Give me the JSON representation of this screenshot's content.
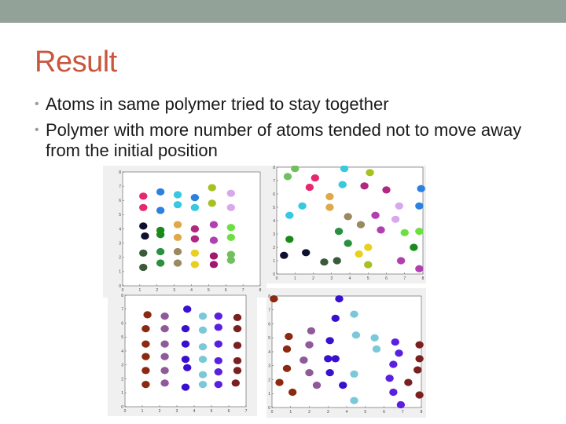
{
  "slide": {
    "title": "Result",
    "accent_color": "#c8573d",
    "bar_color": "#93a299",
    "bullets": [
      "Atoms in same polymer tried to stay together",
      "Polymer with more number of atoms tended not to move away from the initial position"
    ]
  },
  "chart_data": [
    {
      "type": "scatter",
      "xlim": [
        0,
        8
      ],
      "ylim": [
        0,
        8
      ],
      "xticks": [
        "0",
        "1",
        "2",
        "3",
        "4",
        "5",
        "6",
        "7",
        "8"
      ],
      "yticks": [
        "0",
        "1",
        "2",
        "3",
        "4",
        "5",
        "6",
        "7",
        "8"
      ],
      "points": [
        {
          "x": 1.2,
          "y": 6.3,
          "color": "#e6286f"
        },
        {
          "x": 1.2,
          "y": 5.5,
          "color": "#e6286f"
        },
        {
          "x": 2.2,
          "y": 6.6,
          "color": "#2b80e0"
        },
        {
          "x": 2.2,
          "y": 5.3,
          "color": "#2b80e0"
        },
        {
          "x": 3.2,
          "y": 6.4,
          "color": "#38c8e0"
        },
        {
          "x": 3.2,
          "y": 5.7,
          "color": "#38c8e0"
        },
        {
          "x": 4.2,
          "y": 6.2,
          "color": "#2b80e0"
        },
        {
          "x": 4.2,
          "y": 5.5,
          "color": "#38c8e0"
        },
        {
          "x": 5.2,
          "y": 6.9,
          "color": "#a8c020"
        },
        {
          "x": 5.2,
          "y": 5.8,
          "color": "#a8c020"
        },
        {
          "x": 6.3,
          "y": 6.5,
          "color": "#d8a8ec"
        },
        {
          "x": 6.3,
          "y": 5.5,
          "color": "#d8a8ec"
        },
        {
          "x": 1.2,
          "y": 4.2,
          "color": "#101030"
        },
        {
          "x": 1.3,
          "y": 3.5,
          "color": "#101030"
        },
        {
          "x": 2.2,
          "y": 3.9,
          "color": "#1a8a1a"
        },
        {
          "x": 2.2,
          "y": 3.6,
          "color": "#1a8a1a"
        },
        {
          "x": 3.2,
          "y": 4.3,
          "color": "#e0a848"
        },
        {
          "x": 3.2,
          "y": 3.4,
          "color": "#e0a848"
        },
        {
          "x": 4.2,
          "y": 4.0,
          "color": "#b02880"
        },
        {
          "x": 4.2,
          "y": 3.3,
          "color": "#b02880"
        },
        {
          "x": 5.3,
          "y": 4.3,
          "color": "#b040b0"
        },
        {
          "x": 5.3,
          "y": 3.2,
          "color": "#b040b0"
        },
        {
          "x": 6.3,
          "y": 4.1,
          "color": "#6ce040"
        },
        {
          "x": 6.3,
          "y": 3.4,
          "color": "#6ce040"
        },
        {
          "x": 1.2,
          "y": 2.3,
          "color": "#3a5a3a"
        },
        {
          "x": 1.2,
          "y": 1.3,
          "color": "#3a5a3a"
        },
        {
          "x": 2.2,
          "y": 2.4,
          "color": "#2a9040"
        },
        {
          "x": 2.2,
          "y": 1.6,
          "color": "#2a9040"
        },
        {
          "x": 3.2,
          "y": 2.4,
          "color": "#9a8a60"
        },
        {
          "x": 3.2,
          "y": 1.6,
          "color": "#9a8a60"
        },
        {
          "x": 4.2,
          "y": 2.3,
          "color": "#e8d020"
        },
        {
          "x": 4.2,
          "y": 1.5,
          "color": "#e8d020"
        },
        {
          "x": 5.3,
          "y": 2.1,
          "color": "#a01870"
        },
        {
          "x": 5.3,
          "y": 1.5,
          "color": "#a01870"
        },
        {
          "x": 6.3,
          "y": 2.2,
          "color": "#70c060"
        },
        {
          "x": 6.3,
          "y": 1.8,
          "color": "#70c060"
        }
      ]
    },
    {
      "type": "scatter",
      "xlim": [
        0,
        8
      ],
      "ylim": [
        0,
        8
      ],
      "xticks": [
        "0",
        "1",
        "2",
        "3",
        "4",
        "5",
        "6",
        "7",
        "8"
      ],
      "yticks": [
        "0",
        "1",
        "2",
        "3",
        "4",
        "5",
        "6",
        "7",
        "8"
      ],
      "points": [
        {
          "x": 1.0,
          "y": 7.9,
          "color": "#70c060"
        },
        {
          "x": 0.6,
          "y": 7.3,
          "color": "#70c060"
        },
        {
          "x": 2.1,
          "y": 7.2,
          "color": "#e6286f"
        },
        {
          "x": 1.8,
          "y": 6.5,
          "color": "#e6286f"
        },
        {
          "x": 3.7,
          "y": 7.9,
          "color": "#38c8e0"
        },
        {
          "x": 3.6,
          "y": 6.7,
          "color": "#38c8e0"
        },
        {
          "x": 5.1,
          "y": 7.6,
          "color": "#a8c020"
        },
        {
          "x": 4.8,
          "y": 6.6,
          "color": "#b02880"
        },
        {
          "x": 6.0,
          "y": 6.3,
          "color": "#b02880"
        },
        {
          "x": 7.9,
          "y": 6.4,
          "color": "#2b80e0"
        },
        {
          "x": 7.8,
          "y": 5.1,
          "color": "#2b80e0"
        },
        {
          "x": 6.7,
          "y": 5.1,
          "color": "#d8a8ec"
        },
        {
          "x": 6.5,
          "y": 4.1,
          "color": "#d8a8ec"
        },
        {
          "x": 2.9,
          "y": 5.8,
          "color": "#e0a848"
        },
        {
          "x": 2.9,
          "y": 5.0,
          "color": "#e0a848"
        },
        {
          "x": 1.4,
          "y": 5.1,
          "color": "#38c8e0"
        },
        {
          "x": 0.7,
          "y": 4.4,
          "color": "#38c8e0"
        },
        {
          "x": 3.9,
          "y": 4.3,
          "color": "#9a8a60"
        },
        {
          "x": 4.6,
          "y": 3.7,
          "color": "#9a8a60"
        },
        {
          "x": 5.4,
          "y": 4.4,
          "color": "#b040b0"
        },
        {
          "x": 5.7,
          "y": 3.3,
          "color": "#b040b0"
        },
        {
          "x": 7.0,
          "y": 3.1,
          "color": "#6ce040"
        },
        {
          "x": 7.8,
          "y": 3.2,
          "color": "#6ce040"
        },
        {
          "x": 7.5,
          "y": 2.0,
          "color": "#1a8a1a"
        },
        {
          "x": 0.7,
          "y": 2.6,
          "color": "#1a8a1a"
        },
        {
          "x": 3.4,
          "y": 3.2,
          "color": "#2a9040"
        },
        {
          "x": 3.9,
          "y": 2.3,
          "color": "#2a9040"
        },
        {
          "x": 4.5,
          "y": 1.5,
          "color": "#e8d020"
        },
        {
          "x": 5.0,
          "y": 2.0,
          "color": "#e8d020"
        },
        {
          "x": 6.8,
          "y": 1.0,
          "color": "#b040b0"
        },
        {
          "x": 7.8,
          "y": 0.4,
          "color": "#b040b0"
        },
        {
          "x": 0.4,
          "y": 1.4,
          "color": "#101030"
        },
        {
          "x": 1.6,
          "y": 1.6,
          "color": "#101030"
        },
        {
          "x": 2.6,
          "y": 0.9,
          "color": "#3a5a3a"
        },
        {
          "x": 3.3,
          "y": 1.0,
          "color": "#3a5a3a"
        },
        {
          "x": 5.0,
          "y": 0.7,
          "color": "#a8c020"
        }
      ]
    },
    {
      "type": "scatter",
      "xlim": [
        0,
        7
      ],
      "ylim": [
        0,
        8
      ],
      "xticks": [
        "0",
        "1",
        "2",
        "3",
        "4",
        "5",
        "6",
        "7"
      ],
      "yticks": [
        "0",
        "1",
        "2",
        "3",
        "4",
        "5",
        "6",
        "7",
        "8"
      ],
      "points": [
        {
          "x": 1.3,
          "y": 6.6,
          "color": "#8b2a10"
        },
        {
          "x": 2.3,
          "y": 6.5,
          "color": "#8e5a9a"
        },
        {
          "x": 3.6,
          "y": 7.0,
          "color": "#3a10d0"
        },
        {
          "x": 4.5,
          "y": 6.5,
          "color": "#7ac8d8"
        },
        {
          "x": 5.4,
          "y": 6.5,
          "color": "#5a20e0"
        },
        {
          "x": 6.5,
          "y": 6.4,
          "color": "#7a2020"
        },
        {
          "x": 1.2,
          "y": 5.6,
          "color": "#8b2a10"
        },
        {
          "x": 2.3,
          "y": 5.6,
          "color": "#8e5a9a"
        },
        {
          "x": 3.5,
          "y": 5.6,
          "color": "#3a10d0"
        },
        {
          "x": 4.5,
          "y": 5.5,
          "color": "#7ac8d8"
        },
        {
          "x": 5.4,
          "y": 5.7,
          "color": "#5a20e0"
        },
        {
          "x": 6.5,
          "y": 5.6,
          "color": "#7a2020"
        },
        {
          "x": 1.2,
          "y": 4.5,
          "color": "#8b2a10"
        },
        {
          "x": 2.3,
          "y": 4.5,
          "color": "#8e5a9a"
        },
        {
          "x": 3.5,
          "y": 4.5,
          "color": "#3a10d0"
        },
        {
          "x": 4.5,
          "y": 4.3,
          "color": "#7ac8d8"
        },
        {
          "x": 5.4,
          "y": 4.5,
          "color": "#5a20e0"
        },
        {
          "x": 6.5,
          "y": 4.4,
          "color": "#7a2020"
        },
        {
          "x": 1.2,
          "y": 3.6,
          "color": "#8b2a10"
        },
        {
          "x": 2.3,
          "y": 3.6,
          "color": "#8e5a9a"
        },
        {
          "x": 3.5,
          "y": 3.4,
          "color": "#3a10d0"
        },
        {
          "x": 4.5,
          "y": 3.4,
          "color": "#7ac8d8"
        },
        {
          "x": 5.4,
          "y": 3.3,
          "color": "#5a20e0"
        },
        {
          "x": 6.5,
          "y": 3.3,
          "color": "#7a2020"
        },
        {
          "x": 1.2,
          "y": 2.6,
          "color": "#8b2a10"
        },
        {
          "x": 2.3,
          "y": 2.6,
          "color": "#8e5a9a"
        },
        {
          "x": 3.6,
          "y": 2.8,
          "color": "#3a10d0"
        },
        {
          "x": 4.5,
          "y": 2.3,
          "color": "#7ac8d8"
        },
        {
          "x": 5.4,
          "y": 2.5,
          "color": "#5a20e0"
        },
        {
          "x": 6.5,
          "y": 2.6,
          "color": "#7a2020"
        },
        {
          "x": 1.2,
          "y": 1.6,
          "color": "#8b2a10"
        },
        {
          "x": 2.3,
          "y": 1.7,
          "color": "#8e5a9a"
        },
        {
          "x": 3.5,
          "y": 1.4,
          "color": "#3a10d0"
        },
        {
          "x": 4.5,
          "y": 1.6,
          "color": "#7ac8d8"
        },
        {
          "x": 5.4,
          "y": 1.6,
          "color": "#5a20e0"
        },
        {
          "x": 6.4,
          "y": 1.7,
          "color": "#7a2020"
        }
      ]
    },
    {
      "type": "scatter",
      "xlim": [
        0,
        8
      ],
      "ylim": [
        0,
        8
      ],
      "xticks": [
        "0",
        "1",
        "2",
        "3",
        "4",
        "5",
        "6",
        "7",
        "8"
      ],
      "yticks": [
        "0",
        "1",
        "2",
        "3",
        "4",
        "5",
        "6",
        "7",
        "8"
      ],
      "points": [
        {
          "x": 0.1,
          "y": 7.8,
          "color": "#8b2a10"
        },
        {
          "x": 3.6,
          "y": 7.8,
          "color": "#3a10d0"
        },
        {
          "x": 4.4,
          "y": 6.7,
          "color": "#7ac8d8"
        },
        {
          "x": 3.4,
          "y": 6.4,
          "color": "#3a10d0"
        },
        {
          "x": 0.9,
          "y": 5.1,
          "color": "#8b2a10"
        },
        {
          "x": 2.1,
          "y": 5.5,
          "color": "#8e5a9a"
        },
        {
          "x": 4.5,
          "y": 5.2,
          "color": "#7ac8d8"
        },
        {
          "x": 5.5,
          "y": 5.0,
          "color": "#7ac8d8"
        },
        {
          "x": 6.6,
          "y": 4.7,
          "color": "#5a20e0"
        },
        {
          "x": 7.9,
          "y": 4.5,
          "color": "#7a2020"
        },
        {
          "x": 0.8,
          "y": 4.2,
          "color": "#8b2a10"
        },
        {
          "x": 2.0,
          "y": 4.5,
          "color": "#8e5a9a"
        },
        {
          "x": 3.1,
          "y": 4.8,
          "color": "#3a10d0"
        },
        {
          "x": 5.6,
          "y": 4.2,
          "color": "#7ac8d8"
        },
        {
          "x": 6.8,
          "y": 3.9,
          "color": "#5a20e0"
        },
        {
          "x": 7.9,
          "y": 3.5,
          "color": "#7a2020"
        },
        {
          "x": 1.7,
          "y": 3.4,
          "color": "#8e5a9a"
        },
        {
          "x": 3.0,
          "y": 3.5,
          "color": "#3a10d0"
        },
        {
          "x": 3.4,
          "y": 3.5,
          "color": "#3a10d0"
        },
        {
          "x": 6.5,
          "y": 3.1,
          "color": "#5a20e0"
        },
        {
          "x": 0.8,
          "y": 2.8,
          "color": "#8b2a10"
        },
        {
          "x": 2.0,
          "y": 2.5,
          "color": "#8e5a9a"
        },
        {
          "x": 3.1,
          "y": 2.5,
          "color": "#3a10d0"
        },
        {
          "x": 4.4,
          "y": 2.4,
          "color": "#7ac8d8"
        },
        {
          "x": 6.3,
          "y": 2.1,
          "color": "#5a20e0"
        },
        {
          "x": 7.8,
          "y": 2.7,
          "color": "#7a2020"
        },
        {
          "x": 0.4,
          "y": 1.8,
          "color": "#8b2a10"
        },
        {
          "x": 2.4,
          "y": 1.6,
          "color": "#8e5a9a"
        },
        {
          "x": 3.8,
          "y": 1.6,
          "color": "#3a10d0"
        },
        {
          "x": 7.3,
          "y": 1.8,
          "color": "#7a2020"
        },
        {
          "x": 1.1,
          "y": 1.1,
          "color": "#8b2a10"
        },
        {
          "x": 6.5,
          "y": 1.1,
          "color": "#5a20e0"
        },
        {
          "x": 4.4,
          "y": 0.5,
          "color": "#7ac8d8"
        },
        {
          "x": 6.9,
          "y": 0.2,
          "color": "#5a20e0"
        },
        {
          "x": 7.9,
          "y": 0.9,
          "color": "#7a2020"
        }
      ]
    }
  ]
}
